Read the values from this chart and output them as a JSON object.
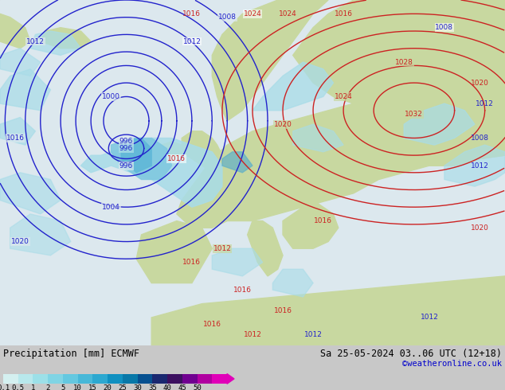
{
  "title_left": "Precipitation [mm] ECMWF",
  "title_right": "Sa 25-05-2024 03..06 UTC (12+18)",
  "credit": "©weatheronline.co.uk",
  "colorbar_values": [
    "0.1",
    "0.5",
    "1",
    "2",
    "5",
    "10",
    "15",
    "20",
    "25",
    "30",
    "35",
    "40",
    "45",
    "50"
  ],
  "colorbar_colors": [
    "#d4f0f0",
    "#b8e8ec",
    "#9ce0e8",
    "#80d4e4",
    "#64c8e0",
    "#48b8d8",
    "#2ca8d0",
    "#1090c0",
    "#0878a8",
    "#065090",
    "#1a2870",
    "#3c1060",
    "#700090",
    "#b000a0",
    "#e000b8"
  ],
  "ocean_color": "#dce8ee",
  "land_color": "#c8d8a0",
  "precip_light": "#a8dce8",
  "precip_med": "#80c8e0",
  "blue_isobar_color": "#2222cc",
  "red_isobar_color": "#cc2222",
  "bg_color": "#c8c8c8",
  "text_color": "#000000",
  "credit_color": "#0000cc"
}
